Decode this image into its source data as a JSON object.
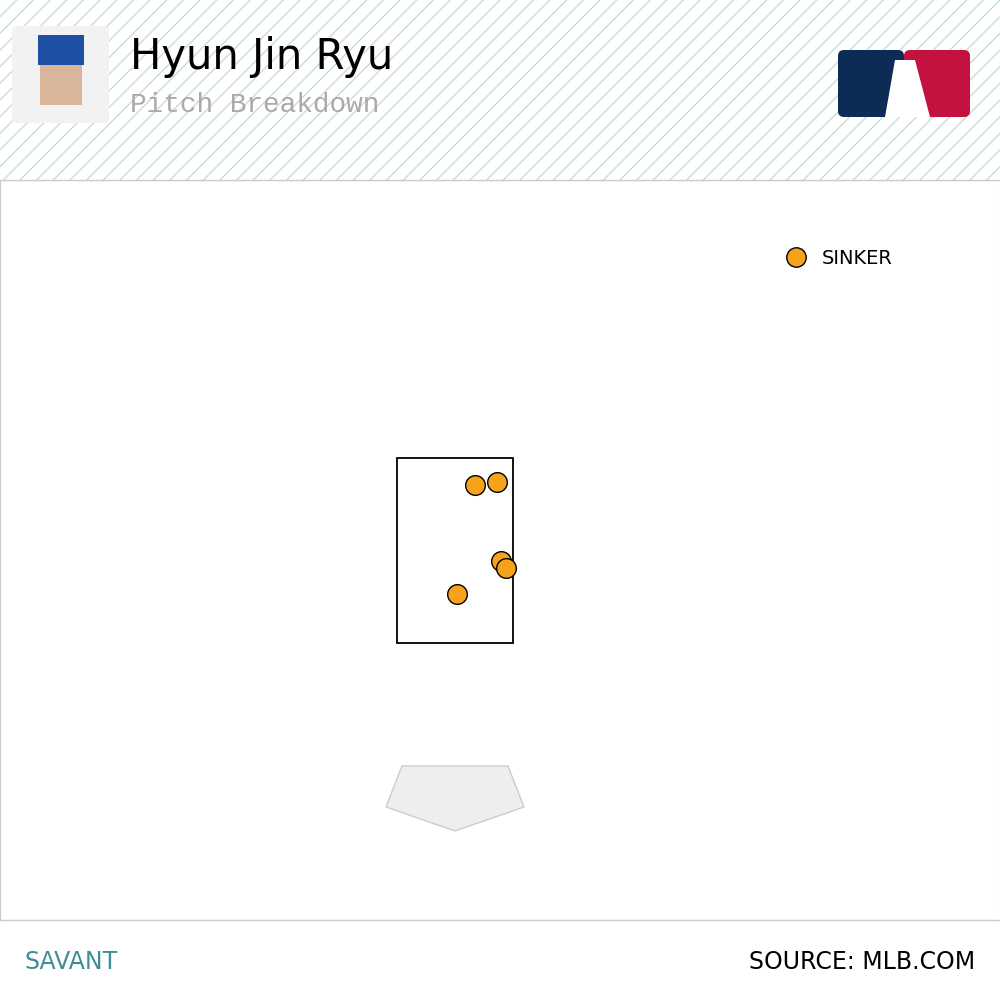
{
  "header": {
    "title": "Hyun Jin Ryu",
    "subtitle": "Pitch Breakdown"
  },
  "footer": {
    "left": "SAVANT",
    "right": "SOURCE: MLB.COM"
  },
  "chart_data": {
    "type": "scatter",
    "series": [
      {
        "name": "SINKER",
        "color": "#f7a21b",
        "marker": "circle",
        "x": [
          0.29,
          0.6,
          0.66,
          0.73,
          0.04
        ],
        "values": [
          3.2,
          3.24,
          2.38,
          2.31,
          2.02
        ]
      }
    ],
    "strike_zone": {
      "x": [
        -0.83,
        0.83
      ],
      "z": [
        1.5,
        3.5
      ]
    },
    "xlim": [
      -6.5,
      7.8
    ],
    "ylim": [
      -1.5,
      6.5
    ],
    "tick_labels": false,
    "grid": false,
    "legend": "upper right"
  }
}
